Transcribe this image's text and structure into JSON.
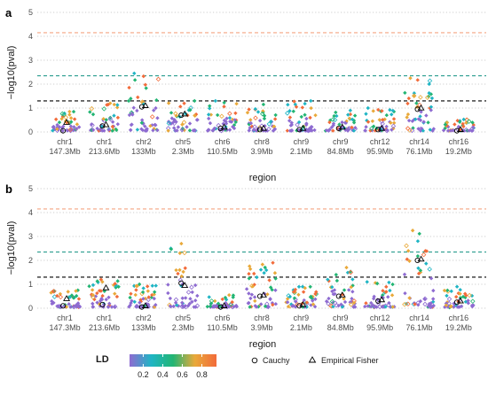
{
  "chart_data": {
    "type": "scatter",
    "panels": [
      {
        "label": "a",
        "ylabel": "−log10(pval)",
        "xlabel": "region",
        "ylim": [
          0,
          5
        ],
        "yticks": [
          "0",
          "1",
          "2",
          "3",
          "4",
          "5"
        ],
        "hlines": [
          {
            "y": 4.15,
            "color": "#f4a582"
          },
          {
            "y": 2.35,
            "color": "#2a9d8f"
          },
          {
            "y": 1.3,
            "color": "#000000"
          }
        ],
        "regions": [
          {
            "chr": "chr1",
            "pos": "147.3Mb",
            "max": 0.85,
            "cauchy": 0.05,
            "fisher": 0.4
          },
          {
            "chr": "chr1",
            "pos": "213.6Mb",
            "max": 1.2,
            "cauchy": 0.25,
            "fisher": 0.3
          },
          {
            "chr": "chr2",
            "pos": "133Mb",
            "max": 2.45,
            "cauchy": 1.05,
            "fisher": 1.1
          },
          {
            "chr": "chr5",
            "pos": "2.3Mb",
            "max": 1.3,
            "cauchy": 0.7,
            "fisher": 0.75
          },
          {
            "chr": "chr6",
            "pos": "110.5Mb",
            "max": 1.3,
            "cauchy": 0.15,
            "fisher": 0.2
          },
          {
            "chr": "chr8",
            "pos": "3.9Mb",
            "max": 1.15,
            "cauchy": 0.1,
            "fisher": 0.15
          },
          {
            "chr": "chr9",
            "pos": "2.1Mb",
            "max": 1.3,
            "cauchy": 0.1,
            "fisher": 0.15
          },
          {
            "chr": "chr9",
            "pos": "84.8Mb",
            "max": 0.9,
            "cauchy": 0.15,
            "fisher": 0.2
          },
          {
            "chr": "chr12",
            "pos": "95.9Mb",
            "max": 1.0,
            "cauchy": 0.1,
            "fisher": 0.15
          },
          {
            "chr": "chr14",
            "pos": "76.1Mb",
            "max": 2.25,
            "cauchy": 0.95,
            "fisher": 1.0
          },
          {
            "chr": "chr16",
            "pos": "19.2Mb",
            "max": 0.5,
            "cauchy": 0.05,
            "fisher": 0.1
          }
        ]
      },
      {
        "label": "b",
        "ylabel": "−log10(pval)",
        "xlabel": "region",
        "ylim": [
          0,
          5
        ],
        "yticks": [
          "0",
          "1",
          "2",
          "3",
          "4",
          "5"
        ],
        "hlines": [
          {
            "y": 4.15,
            "color": "#f4a582"
          },
          {
            "y": 2.35,
            "color": "#2a9d8f"
          },
          {
            "y": 1.3,
            "color": "#000000"
          }
        ],
        "regions": [
          {
            "chr": "chr1",
            "pos": "147.3Mb",
            "max": 0.75,
            "cauchy": 0.1,
            "fisher": 0.4
          },
          {
            "chr": "chr1",
            "pos": "213.6Mb",
            "max": 1.2,
            "cauchy": 0.15,
            "fisher": 0.85
          },
          {
            "chr": "chr2",
            "pos": "133Mb",
            "max": 1.0,
            "cauchy": 0.05,
            "fisher": 0.1
          },
          {
            "chr": "chr5",
            "pos": "2.3Mb",
            "max": 2.7,
            "cauchy": 1.05,
            "fisher": 0.95
          },
          {
            "chr": "chr6",
            "pos": "110.5Mb",
            "max": 0.55,
            "cauchy": 0.05,
            "fisher": 0.1
          },
          {
            "chr": "chr8",
            "pos": "3.9Mb",
            "max": 1.9,
            "cauchy": 0.5,
            "fisher": 0.55
          },
          {
            "chr": "chr9",
            "pos": "2.1Mb",
            "max": 0.9,
            "cauchy": 0.1,
            "fisher": 0.15
          },
          {
            "chr": "chr9",
            "pos": "84.8Mb",
            "max": 1.7,
            "cauchy": 0.5,
            "fisher": 0.55
          },
          {
            "chr": "chr12",
            "pos": "95.9Mb",
            "max": 1.1,
            "cauchy": 0.3,
            "fisher": 0.35
          },
          {
            "chr": "chr14",
            "pos": "76.1Mb",
            "max": 3.25,
            "cauchy": 2.0,
            "fisher": 2.05
          },
          {
            "chr": "chr16",
            "pos": "19.2Mb",
            "max": 0.9,
            "cauchy": 0.25,
            "fisher": 0.3
          }
        ]
      }
    ],
    "legend": {
      "title": "LD",
      "colors": [
        "#8e6bd1",
        "#1fb5c4",
        "#22b573",
        "#e9a93a",
        "#f26b3a"
      ],
      "tick_labels": [
        "0.2",
        "0.4",
        "0.6",
        "0.8"
      ],
      "markers": [
        {
          "shape": "circle",
          "label": "Cauchy"
        },
        {
          "shape": "triangle",
          "label": "Empirical Fisher"
        }
      ],
      "placement": "bottom"
    }
  }
}
